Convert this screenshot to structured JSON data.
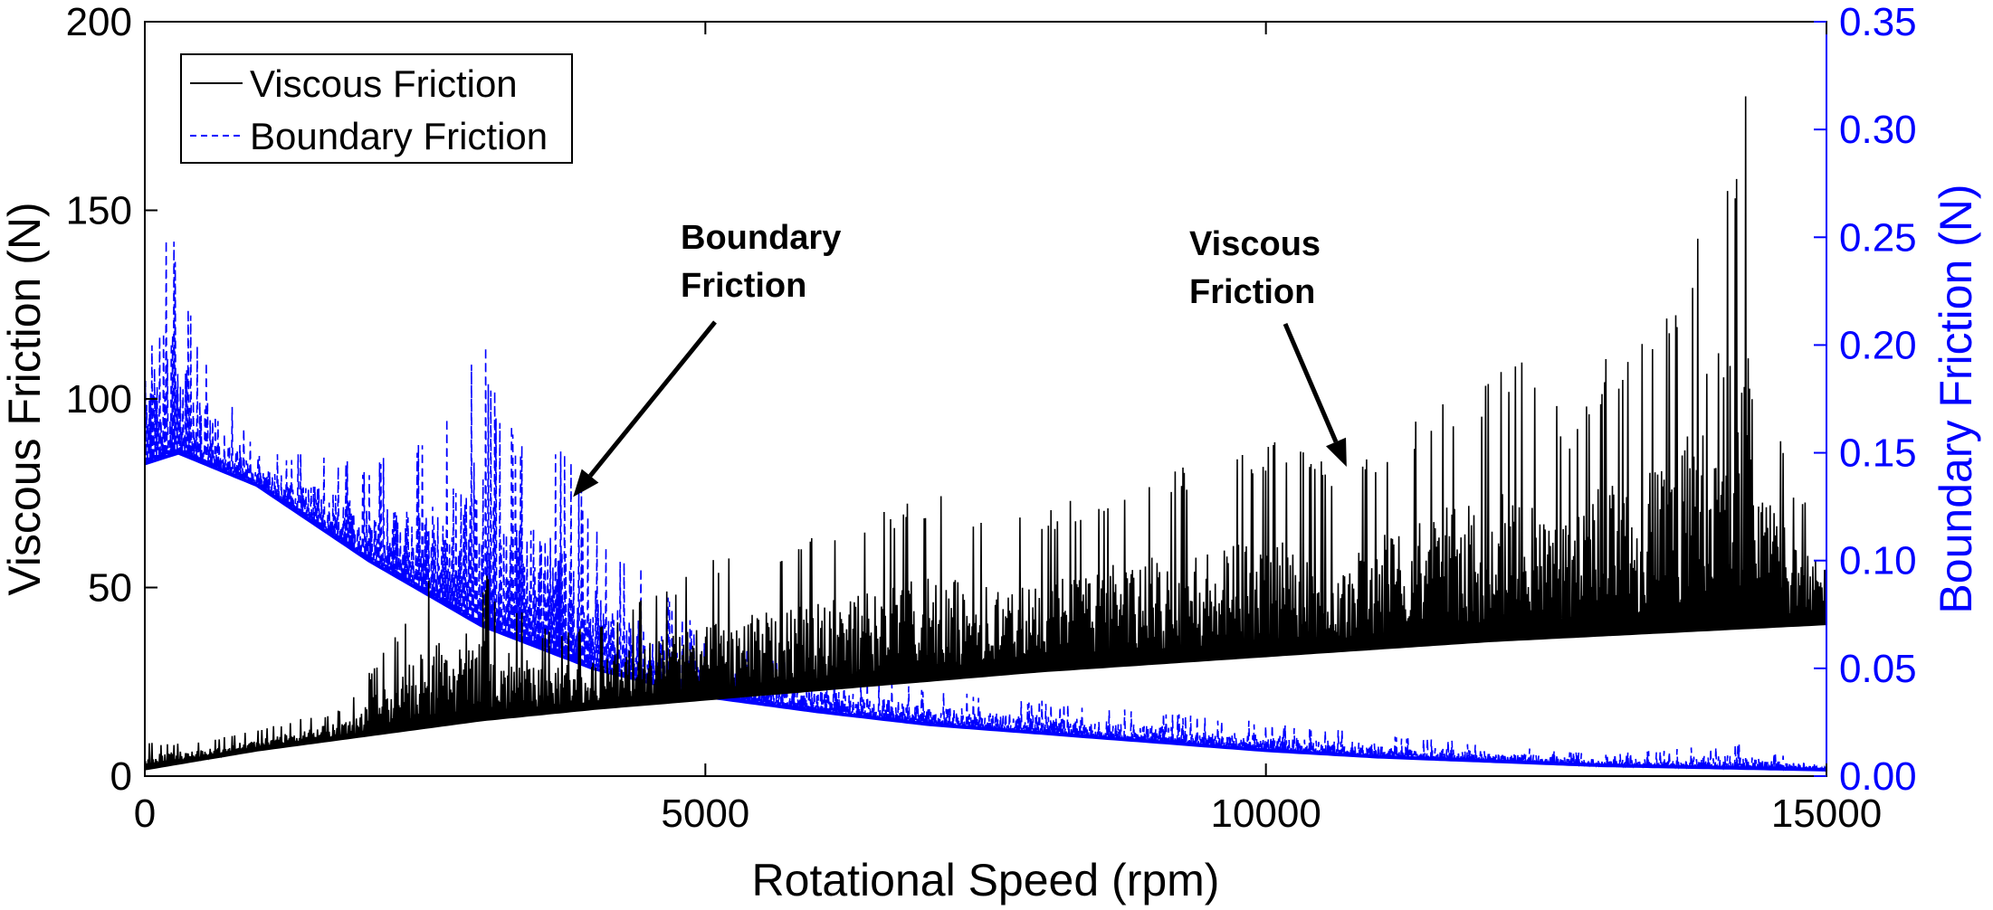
{
  "chart_data": {
    "type": "line",
    "xlabel": "Rotational Speed (rpm)",
    "ylabel_left": "Viscous Friction (N)",
    "ylabel_right": "Boundary Friction (N)",
    "xlim": [
      0,
      15000
    ],
    "ylim_left": [
      0,
      200
    ],
    "ylim_right": [
      0,
      0.35
    ],
    "x_ticks": [
      "0",
      "5000",
      "10000",
      "15000"
    ],
    "y_left_ticks": [
      "0",
      "50",
      "100",
      "150",
      "200"
    ],
    "y_right_ticks": [
      "0.00",
      "0.05",
      "0.10",
      "0.15",
      "0.20",
      "0.25",
      "0.30",
      "0.35"
    ],
    "grid": false,
    "legend_position": "top-left",
    "colors": {
      "viscous": "#000000",
      "boundary": "#0000ff"
    },
    "series": [
      {
        "name": "Viscous Friction",
        "axis": "left",
        "style": "solid",
        "baseline": {
          "x": [
            0,
            1000,
            2000,
            3000,
            4000,
            5000,
            6000,
            7000,
            8000,
            9000,
            10000,
            11000,
            12000,
            13000,
            14000,
            15000
          ],
          "y": [
            2,
            7,
            11,
            15,
            18,
            20.5,
            23,
            25.5,
            28,
            30,
            32,
            34,
            36,
            37.5,
            39,
            40.5
          ]
        },
        "peaks": {
          "x": [
            500,
            1800,
            2700,
            3000,
            3500,
            4000,
            5000,
            6000,
            7000,
            8000,
            8800,
            9600,
            10200,
            10700,
            11500,
            12300,
            12700,
            13000,
            13400,
            13800,
            14000,
            14200,
            14300,
            14500,
            14700,
            15000
          ],
          "y": [
            9,
            18,
            60,
            55,
            40,
            40,
            57,
            65,
            75,
            70,
            80,
            85,
            90,
            80,
            100,
            110,
            95,
            110,
            120,
            135,
            185,
            160,
            187,
            100,
            80,
            70
          ]
        }
      },
      {
        "name": "Boundary Friction",
        "axis": "right",
        "style": "dashed",
        "baseline": {
          "x": [
            0,
            300,
            1000,
            2000,
            3000,
            4000,
            5000,
            6000,
            7000,
            8000,
            9000,
            10000,
            11000,
            12000,
            13000,
            14000,
            15000
          ],
          "y": [
            0.145,
            0.15,
            0.135,
            0.1,
            0.07,
            0.05,
            0.037,
            0.03,
            0.024,
            0.02,
            0.016,
            0.012,
            0.009,
            0.007,
            0.005,
            0.004,
            0.003
          ]
        },
        "peaks": {
          "x": [
            0,
            250,
            400,
            1000,
            1500,
            2000,
            2500,
            2700,
            3000,
            3200,
            3700,
            4000,
            5000,
            6000,
            7000,
            8000,
            9000,
            10000,
            11000,
            12000,
            13000,
            14200,
            15000
          ],
          "y": [
            0.26,
            0.255,
            0.215,
            0.15,
            0.15,
            0.145,
            0.16,
            0.175,
            0.215,
            0.165,
            0.16,
            0.12,
            0.065,
            0.05,
            0.04,
            0.035,
            0.03,
            0.025,
            0.02,
            0.015,
            0.01,
            0.015,
            0.005
          ]
        }
      }
    ],
    "annotations": [
      {
        "lines": [
          "Boundary",
          "Friction"
        ],
        "arrow_tip_x": 3820,
        "arrow_tip_y_left": 74
      },
      {
        "lines": [
          "Viscous",
          "Friction"
        ],
        "arrow_tip_x": 10720,
        "arrow_tip_y_left": 82
      }
    ]
  }
}
